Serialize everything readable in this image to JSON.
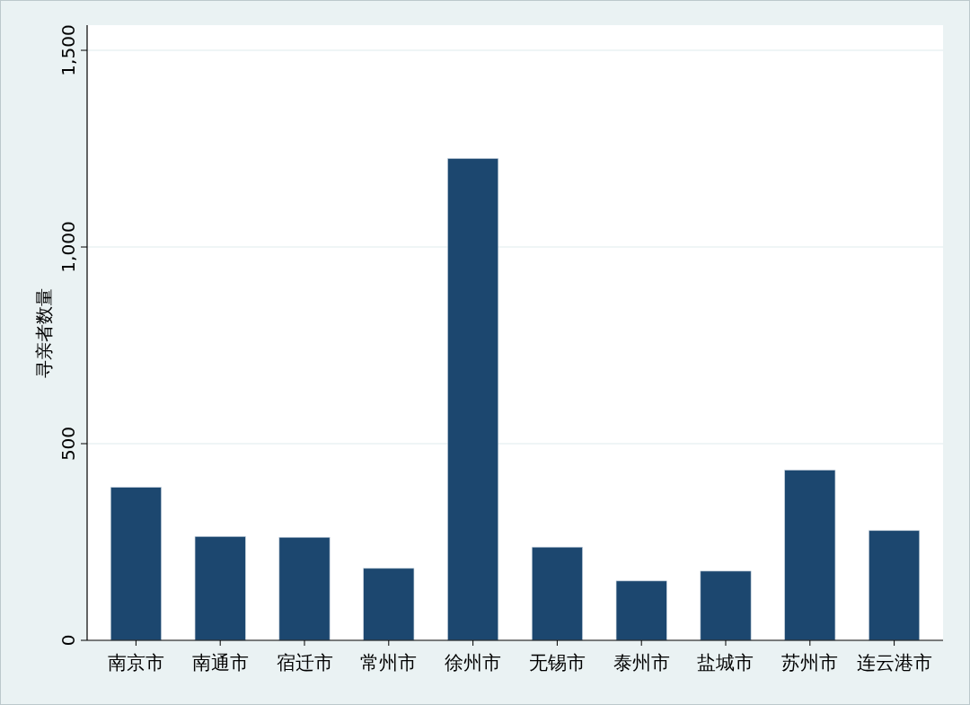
{
  "chart_data": {
    "type": "bar",
    "ylabel": "寻亲者数量",
    "categories": [
      "南京市",
      "南通市",
      "宿迁市",
      "常州市",
      "徐州市",
      "无锡市",
      "泰州市",
      "盐城市",
      "苏州市",
      "连云港市"
    ],
    "values": [
      389,
      264,
      262,
      183,
      1225,
      237,
      151,
      176,
      433,
      279
    ],
    "color": "#1c476f",
    "ylim": [
      0,
      1564
    ],
    "yticks": [
      0,
      500,
      {
        "value": 1000,
        "label": "1,000"
      },
      {
        "value": 1500,
        "label": "1,500"
      }
    ],
    "grid": "y"
  }
}
